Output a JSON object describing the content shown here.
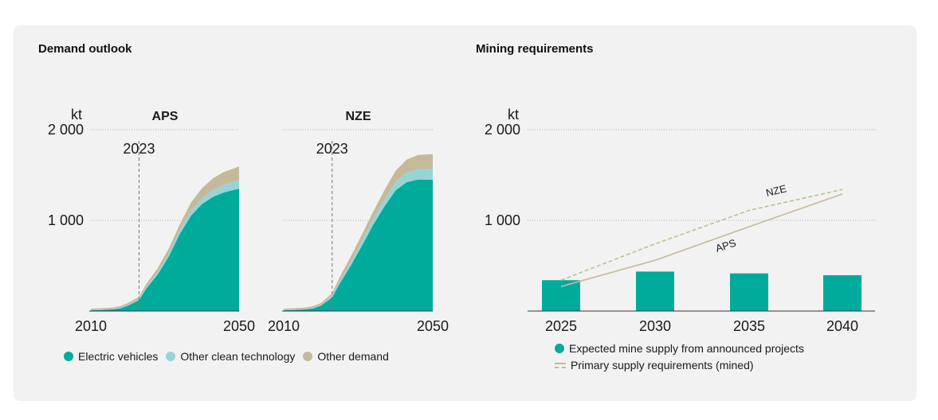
{
  "titles": {
    "left": "Demand outlook",
    "right": "Mining requirements"
  },
  "chart_data": [
    {
      "type": "area",
      "panel": "APS",
      "title": "APS",
      "ylabel": "kt",
      "ylim": [
        0,
        2000
      ],
      "yticks": [
        {
          "value": 1000,
          "label": "1 000"
        },
        {
          "value": 2000,
          "label": "2 000"
        }
      ],
      "xlim": [
        2010,
        2050
      ],
      "xticks": [
        {
          "value": 2010,
          "label": "2010"
        },
        {
          "value": 2050,
          "label": "2050"
        }
      ],
      "marker": {
        "x": 2023,
        "label": "2023"
      },
      "x": [
        2010,
        2013,
        2016,
        2018,
        2020,
        2023,
        2025,
        2028,
        2031,
        2034,
        2037,
        2040,
        2043,
        2046,
        2050
      ],
      "series": [
        {
          "name": "Electric vehicles",
          "values": [
            8,
            12,
            18,
            30,
            60,
            120,
            250,
            400,
            600,
            850,
            1050,
            1180,
            1260,
            1310,
            1350
          ]
        },
        {
          "name": "Other clean technology",
          "values": [
            3,
            4,
            5,
            6,
            8,
            12,
            20,
            30,
            38,
            45,
            55,
            65,
            75,
            85,
            95
          ]
        },
        {
          "name": "Other demand",
          "values": [
            15,
            15,
            16,
            18,
            20,
            25,
            30,
            40,
            50,
            60,
            90,
            110,
            130,
            140,
            150
          ]
        }
      ]
    },
    {
      "type": "area",
      "panel": "NZE",
      "title": "NZE",
      "xlim": [
        2010,
        2050
      ],
      "xticks": [
        {
          "value": 2010,
          "label": "2010"
        },
        {
          "value": 2050,
          "label": "2050"
        }
      ],
      "ylim": [
        0,
        2000
      ],
      "marker": {
        "x": 2023,
        "label": "2023"
      },
      "x": [
        2010,
        2013,
        2016,
        2018,
        2020,
        2023,
        2025,
        2028,
        2031,
        2034,
        2037,
        2040,
        2043,
        2046,
        2050
      ],
      "series": [
        {
          "name": "Electric vehicles",
          "values": [
            8,
            12,
            18,
            30,
            60,
            150,
            300,
            500,
            720,
            950,
            1150,
            1330,
            1420,
            1450,
            1450
          ]
        },
        {
          "name": "Other clean technology",
          "values": [
            3,
            4,
            5,
            6,
            8,
            15,
            25,
            40,
            55,
            65,
            80,
            95,
            110,
            115,
            120
          ]
        },
        {
          "name": "Other demand",
          "values": [
            15,
            15,
            16,
            18,
            20,
            30,
            45,
            60,
            70,
            80,
            100,
            120,
            140,
            155,
            160
          ]
        }
      ]
    },
    {
      "type": "bar",
      "panel": "mining",
      "ylabel": "kt",
      "ylim": [
        0,
        2000
      ],
      "yticks": [
        {
          "value": 1000,
          "label": "1 000"
        },
        {
          "value": 2000,
          "label": "2 000"
        }
      ],
      "categories": [
        "2025",
        "2030",
        "2035",
        "2040"
      ],
      "bars": {
        "name": "Expected mine supply from announced projects",
        "values": [
          340,
          435,
          415,
          395
        ]
      },
      "lines": [
        {
          "name": "APS",
          "values": [
            270,
            560,
            930,
            1290
          ]
        },
        {
          "name": "NZE",
          "values": [
            340,
            740,
            1110,
            1340
          ]
        }
      ],
      "lines_legend": "Primary supply requirements (mined)"
    }
  ],
  "legend_left": [
    {
      "label": "Electric vehicles",
      "color": "#00ab9c"
    },
    {
      "label": "Other clean technology",
      "color": "#96d4d7"
    },
    {
      "label": "Other demand",
      "color": "#c6b99a"
    }
  ],
  "legend_right": {
    "bar_label": "Expected mine supply from announced projects",
    "line_label": "Primary supply requirements (mined)"
  },
  "colors": {
    "ev": "#00ab9c",
    "other_clean": "#96d4d7",
    "other_demand": "#c6b99a",
    "line": "#c6b99a",
    "line_dashed": "#b8c28e"
  }
}
